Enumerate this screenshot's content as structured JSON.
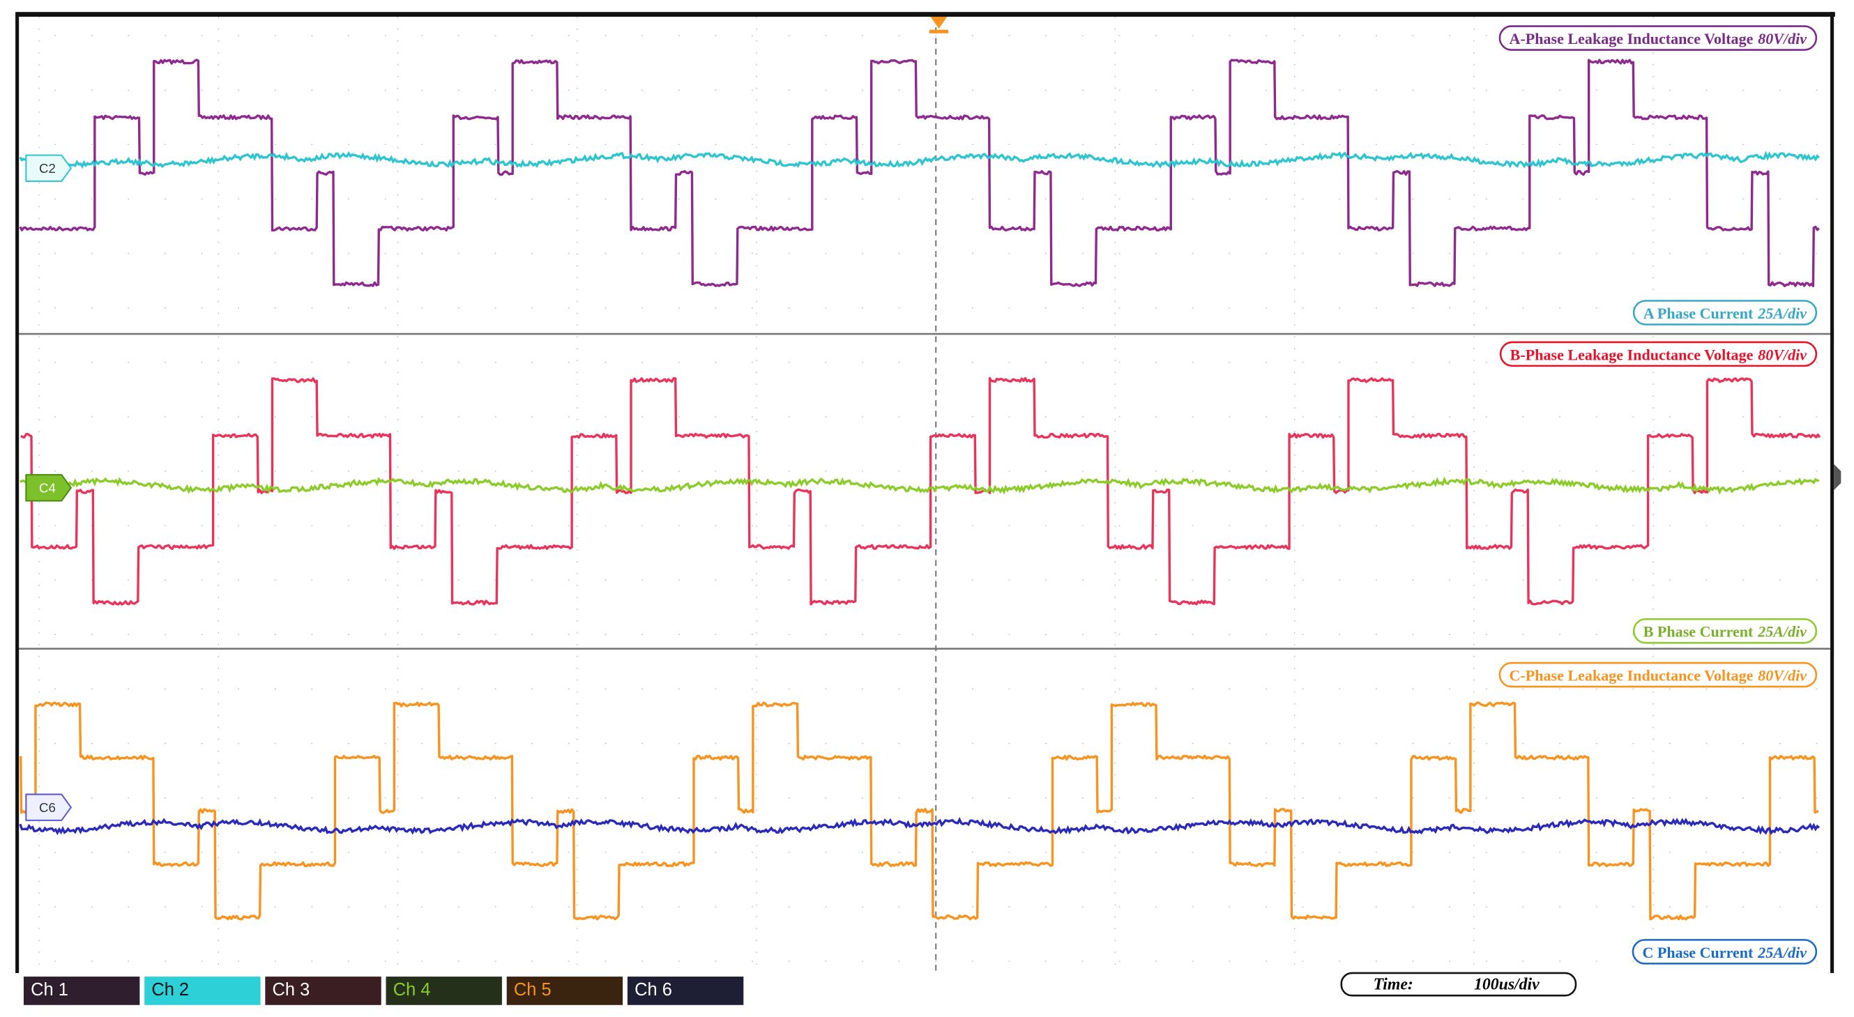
{
  "traces": [
    {
      "name": "A-Phase Leakage Inductance Voltage",
      "scale": "80V/div"
    },
    {
      "name": "A Phase Current",
      "scale": "25A/div"
    },
    {
      "name": "B-Phase Leakage Inductance Voltage",
      "scale": "80V/div"
    },
    {
      "name": "B Phase Current",
      "scale": "25A/div"
    },
    {
      "name": "C-Phase Leakage Inductance Voltage",
      "scale": "80V/div"
    },
    {
      "name": "C Phase Current",
      "scale": "25A/div"
    }
  ],
  "markers": [
    "C2",
    "C4",
    "C6"
  ],
  "tabs": [
    "Ch 1",
    "Ch 2",
    "Ch 3",
    "Ch 4",
    "Ch 5",
    "Ch 6"
  ],
  "timebase": {
    "label": "Time:",
    "value": "100us/div"
  }
}
